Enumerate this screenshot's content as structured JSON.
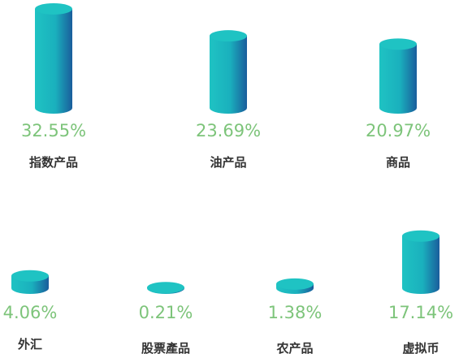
{
  "chart_data": {
    "type": "cylinder",
    "categories": [
      "指数产品",
      "油产品",
      "商品",
      "外汇",
      "股票產品",
      "农产品",
      "虚拟币"
    ],
    "values": [
      32.55,
      23.69,
      20.97,
      4.06,
      0.21,
      1.38,
      17.14
    ],
    "value_labels": [
      "32.55%",
      "23.69%",
      "20.97%",
      "4.06%",
      "0.21%",
      "1.38%",
      "17.14%"
    ],
    "color": "#1fc3c3"
  }
}
